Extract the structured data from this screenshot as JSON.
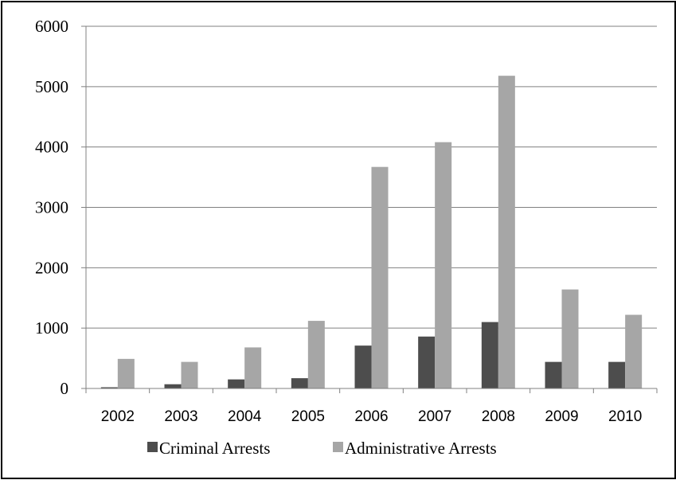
{
  "chart_data": {
    "type": "bar",
    "title": "",
    "xlabel": "",
    "ylabel": "",
    "categories": [
      "2002",
      "2003",
      "2004",
      "2005",
      "2006",
      "2007",
      "2008",
      "2009",
      "2010"
    ],
    "series": [
      {
        "name": "Criminal Arrests",
        "color": "#4d4d4d",
        "values": [
          20,
          70,
          150,
          170,
          710,
          860,
          1100,
          440,
          440
        ]
      },
      {
        "name": "Administrative Arrests",
        "color": "#a6a6a6",
        "values": [
          490,
          440,
          680,
          1120,
          3670,
          4080,
          5180,
          1640,
          1220
        ]
      }
    ],
    "ylim": [
      0,
      6000
    ],
    "yticks": [
      0,
      1000,
      2000,
      3000,
      4000,
      5000,
      6000
    ],
    "grid": true,
    "legend_position": "bottom"
  }
}
